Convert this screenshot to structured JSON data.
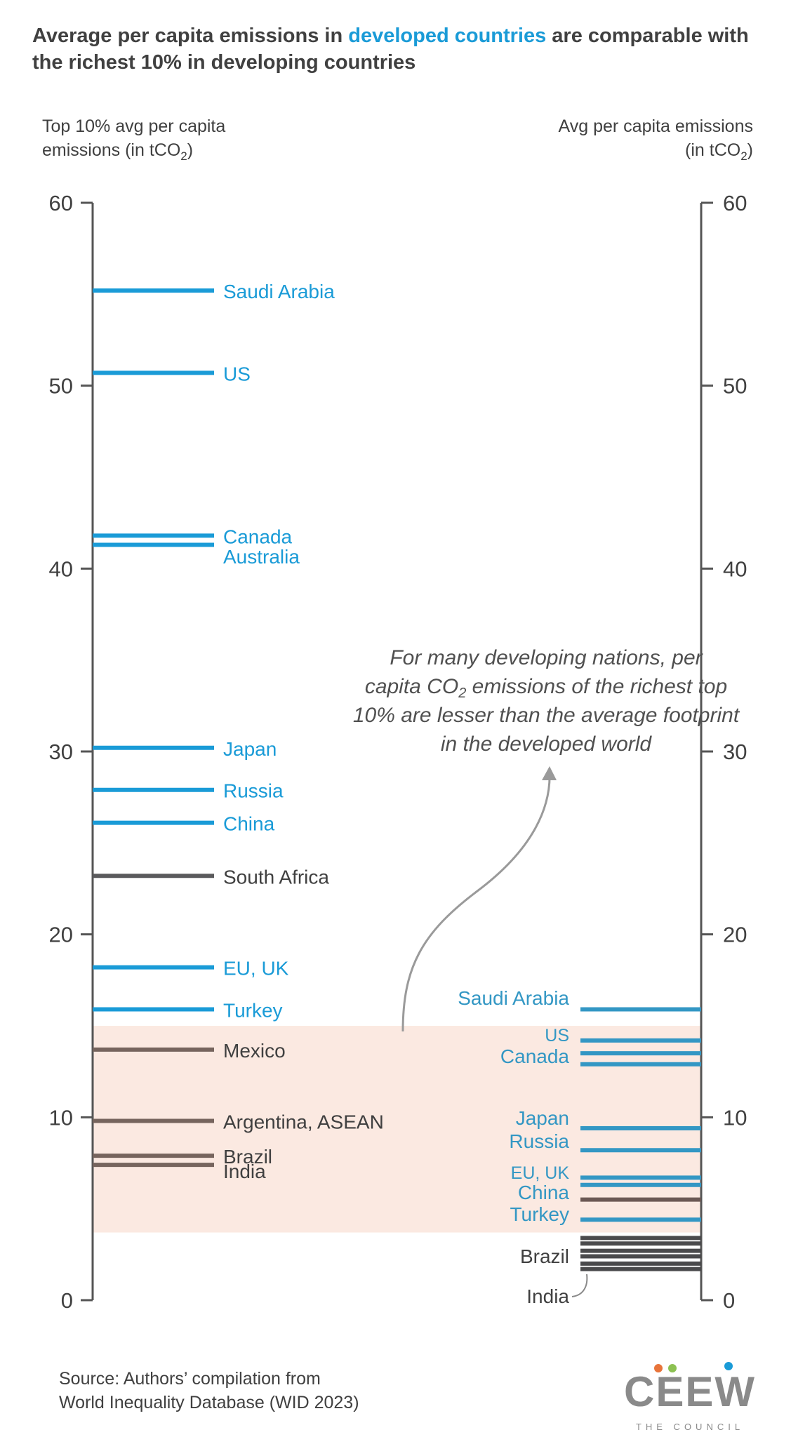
{
  "chart_data": {
    "type": "slope-ladder",
    "title": {
      "pre": "Average per capita emissions in ",
      "highlight": "developed countries",
      "post": " are comparable with",
      "line2": "the richest 10% in developing countries"
    },
    "left_axis": {
      "label_line1": "Top 10% avg per capita",
      "label_line2_pre": "emissions (in tCO",
      "label_line2_sub": "2",
      "label_line2_post": ")",
      "range": [
        0,
        60
      ],
      "ticks": [
        "0",
        "10",
        "20",
        "30",
        "40",
        "50",
        "60"
      ]
    },
    "right_axis": {
      "label_line1": "Avg per capita emissions",
      "label_line2_pre": "(in tCO",
      "label_line2_sub": "2",
      "label_line2_post": ")",
      "range": [
        0,
        60
      ],
      "ticks": [
        "0",
        "10",
        "20",
        "30",
        "40",
        "50",
        "60"
      ]
    },
    "highlight_band": {
      "from": 3.7,
      "to": 15.0
    },
    "left_series": [
      {
        "label": "Saudi Arabia",
        "value": 55.2,
        "group": "developed"
      },
      {
        "label": "US",
        "value": 50.7,
        "group": "developed"
      },
      {
        "label": "Canada",
        "value": 41.8,
        "group": "developed"
      },
      {
        "label": "Australia",
        "value": 41.3,
        "group": "developed",
        "label_offset": -0.6
      },
      {
        "label": "Japan",
        "value": 30.2,
        "group": "developed"
      },
      {
        "label": "Russia",
        "value": 27.9,
        "group": "developed"
      },
      {
        "label": "China",
        "value": 26.1,
        "group": "developed"
      },
      {
        "label": "South Africa",
        "value": 23.2,
        "group": "developing"
      },
      {
        "label": "EU, UK",
        "value": 18.2,
        "group": "developed"
      },
      {
        "label": "Turkey",
        "value": 15.9,
        "group": "developed"
      },
      {
        "label": "Mexico",
        "value": 13.7,
        "group": "developing"
      },
      {
        "label": "Argentina, ASEAN",
        "value": 9.8,
        "group": "developing"
      },
      {
        "label": "Brazil",
        "value": 7.9,
        "group": "developing"
      },
      {
        "label": "India",
        "value": 7.4,
        "group": "developing",
        "label_offset": -0.3
      }
    ],
    "right_series": [
      {
        "label": "Saudi Arabia",
        "value": 15.9,
        "group": "developed"
      },
      {
        "label": "US",
        "value": 14.2,
        "group": "developed"
      },
      {
        "label": "",
        "value": 13.5,
        "group": "developed"
      },
      {
        "label": "Canada",
        "value": 12.9,
        "group": "developed"
      },
      {
        "label": "Japan",
        "value": 9.4,
        "group": "developed"
      },
      {
        "label": "Russia",
        "value": 8.2,
        "group": "developed"
      },
      {
        "label": "EU, UK",
        "value": 6.7,
        "group": "developed"
      },
      {
        "label": "",
        "value": 6.3,
        "group": "developed"
      },
      {
        "label": "China",
        "value": 5.5,
        "group": "developing"
      },
      {
        "label": "Turkey",
        "value": 4.4,
        "group": "developed"
      },
      {
        "label": "",
        "value": 3.4,
        "group": "developing"
      },
      {
        "label": "",
        "value": 3.1,
        "group": "developing"
      },
      {
        "label": "",
        "value": 2.7,
        "group": "developing"
      },
      {
        "label": "Brazil",
        "value": 2.4,
        "group": "developing"
      },
      {
        "label": "",
        "value": 2.0,
        "group": "developing"
      },
      {
        "label": "",
        "value": 1.7,
        "group": "developing"
      }
    ],
    "right_extra_label": "India",
    "annotation": {
      "line1": "For many developing nations, per",
      "line2_pre": "capita CO",
      "line2_sub": "2",
      "line2_post": " emissions of the richest top",
      "line3": "10% are lesser than the average footprint",
      "line4": "in the developed world"
    },
    "source": {
      "line1": "Source: Authors’ compilation from",
      "line2": "World Inequality Database (WID 2023)"
    },
    "logo": {
      "name": "CEEW",
      "tagline": "THE COUNCIL"
    },
    "colors": {
      "developed_left": "#1a9bd7",
      "developed_right": "#3397c4",
      "developing_left": "#5a5a5c",
      "developing_band": "#76645d",
      "developing_right_band": "#6b5854",
      "developing_right": "#4a4a4c",
      "axis": "#555555",
      "band": "#fbe9e1",
      "text": "#404040",
      "title_highlight": "#1a9bd7",
      "logo_dot_orange": "#e8743a",
      "logo_dot_green": "#8cc152",
      "logo_dot_blue": "#1a9bd7",
      "logo_text": "#8a8a8a"
    }
  }
}
